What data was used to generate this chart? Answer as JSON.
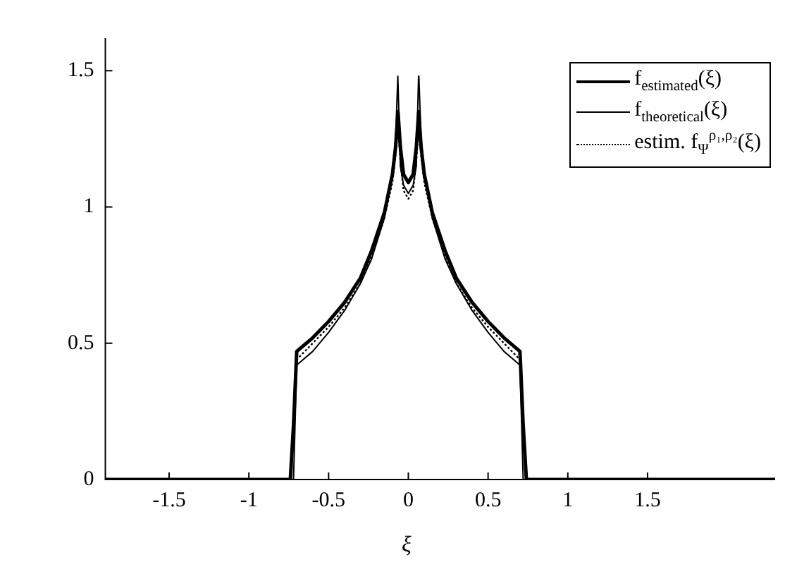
{
  "chart_data": {
    "type": "line",
    "xlabel": "ξ",
    "xlim": [
      -1.9,
      2.3
    ],
    "ylim": [
      0,
      1.62
    ],
    "xticks": [
      -1.5,
      -1,
      -0.5,
      0,
      0.5,
      1,
      1.5
    ],
    "yticks": [
      0,
      0.5,
      1,
      1.5
    ],
    "grid": false,
    "legend": "top right",
    "marker": "none",
    "series": [
      {
        "name": "f$_{estimated}$(ξ)",
        "color": "#000000",
        "line_style": "solid",
        "x": [
          -1.9,
          -0.74,
          -0.72,
          -0.7,
          -0.6,
          -0.5,
          -0.4,
          -0.3,
          -0.23,
          -0.15,
          -0.1,
          -0.08,
          -0.065,
          -0.05,
          -0.03,
          0,
          0.03,
          0.05,
          0.065,
          0.08,
          0.1,
          0.15,
          0.23,
          0.3,
          0.4,
          0.5,
          0.6,
          0.7,
          0.72,
          0.74,
          2.3
        ],
        "values": [
          0,
          0,
          0.2,
          0.47,
          0.52,
          0.58,
          0.65,
          0.74,
          0.84,
          0.98,
          1.12,
          1.22,
          1.35,
          1.22,
          1.12,
          1.09,
          1.12,
          1.22,
          1.35,
          1.22,
          1.12,
          0.98,
          0.84,
          0.74,
          0.65,
          0.58,
          0.52,
          0.47,
          0.2,
          0,
          0
        ]
      },
      {
        "name": "f$_{theoretical}$(ξ)",
        "color": "#000000",
        "line_style": "solid",
        "x": [
          -1.9,
          -0.72,
          -0.7,
          -0.6,
          -0.5,
          -0.4,
          -0.3,
          -0.23,
          -0.15,
          -0.1,
          -0.08,
          -0.066,
          -0.064,
          -0.05,
          -0.03,
          0,
          0.03,
          0.05,
          0.064,
          0.066,
          0.08,
          0.1,
          0.15,
          0.23,
          0.3,
          0.4,
          0.5,
          0.6,
          0.7,
          0.72,
          2.3
        ],
        "values": [
          0,
          0,
          0.42,
          0.47,
          0.54,
          0.62,
          0.72,
          0.81,
          0.96,
          1.12,
          1.25,
          1.48,
          1.48,
          1.15,
          1.08,
          1.05,
          1.08,
          1.15,
          1.48,
          1.48,
          1.25,
          1.12,
          0.96,
          0.81,
          0.72,
          0.62,
          0.54,
          0.47,
          0.42,
          0,
          0
        ]
      },
      {
        "name": "estim. f$_{Ψ}$$^{ρ₁,ρ₂}$(ξ)",
        "color": "#000000",
        "line_style": "dotted",
        "x": [
          -1.9,
          -0.74,
          -0.72,
          -0.7,
          -0.6,
          -0.5,
          -0.4,
          -0.3,
          -0.23,
          -0.15,
          -0.1,
          -0.08,
          -0.065,
          -0.05,
          -0.03,
          0,
          0.03,
          0.05,
          0.065,
          0.08,
          0.1,
          0.15,
          0.23,
          0.3,
          0.4,
          0.5,
          0.6,
          0.7,
          0.72,
          0.74,
          2.3
        ],
        "values": [
          0,
          0,
          0.2,
          0.44,
          0.5,
          0.56,
          0.63,
          0.72,
          0.82,
          0.96,
          1.09,
          1.19,
          1.3,
          1.17,
          1.06,
          1.03,
          1.06,
          1.17,
          1.3,
          1.19,
          1.09,
          0.96,
          0.82,
          0.72,
          0.63,
          0.56,
          0.5,
          0.44,
          0.2,
          0,
          0
        ]
      }
    ]
  }
}
